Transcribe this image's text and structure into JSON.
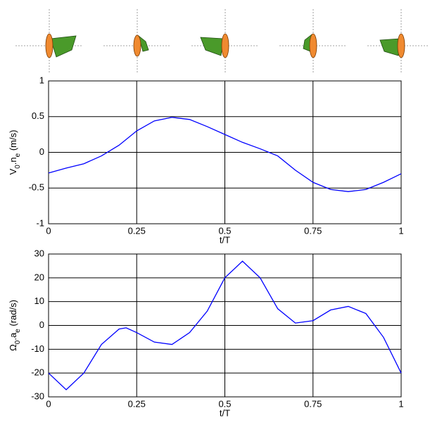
{
  "chart_data": [
    {
      "type": "line",
      "ylabel": [
        "V",
        "0",
        ".n",
        "e",
        " (m/s)"
      ],
      "xlabel": "t/T",
      "xlim": [
        0,
        1
      ],
      "xticks": [
        0,
        0.25,
        0.5,
        0.75,
        1
      ],
      "ylim": [
        -1,
        1
      ],
      "yticks": [
        -1,
        -0.5,
        0,
        0.5,
        1
      ],
      "grid": true,
      "series": [
        {
          "color": "#0000ff",
          "x": [
            0,
            0.05,
            0.1,
            0.15,
            0.2,
            0.25,
            0.3,
            0.35,
            0.4,
            0.45,
            0.5,
            0.55,
            0.6,
            0.65,
            0.7,
            0.75,
            0.8,
            0.85,
            0.9,
            0.95,
            1
          ],
          "values": [
            -0.29,
            -0.22,
            -0.16,
            -0.05,
            0.1,
            0.3,
            0.44,
            0.49,
            0.46,
            0.36,
            0.25,
            0.14,
            0.05,
            -0.05,
            -0.25,
            -0.42,
            -0.52,
            -0.55,
            -0.52,
            -0.42,
            -0.3
          ]
        }
      ]
    },
    {
      "type": "line",
      "ylabel": [
        "Ω",
        "0",
        ".a",
        "e",
        " (rad/s)"
      ],
      "xlabel": "t/T",
      "xlim": [
        0,
        1
      ],
      "xticks": [
        0,
        0.25,
        0.5,
        0.75,
        1
      ],
      "ylim": [
        -30,
        30
      ],
      "yticks": [
        -30,
        -20,
        -10,
        0,
        10,
        20,
        30
      ],
      "grid": true,
      "series": [
        {
          "color": "#0000ff",
          "x": [
            0,
            0.05,
            0.1,
            0.15,
            0.2,
            0.22,
            0.25,
            0.3,
            0.35,
            0.4,
            0.45,
            0.5,
            0.55,
            0.6,
            0.65,
            0.7,
            0.75,
            0.8,
            0.85,
            0.9,
            0.95,
            1
          ],
          "values": [
            -20,
            -27,
            -20,
            -8,
            -1.5,
            -1,
            -3,
            -7,
            -8,
            -3,
            6,
            20,
            27,
            20,
            7,
            1,
            2,
            6.5,
            8,
            5,
            -5,
            -20
          ]
        }
      ]
    }
  ]
}
